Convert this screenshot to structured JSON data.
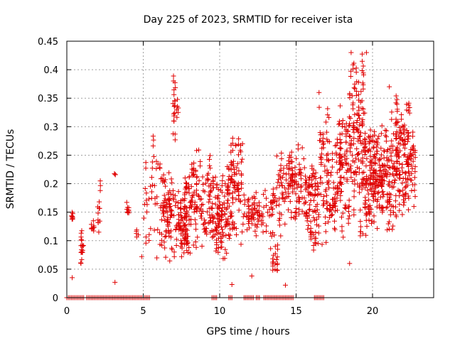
{
  "chart_data": {
    "type": "scatter",
    "title": "Day 225 of 2023, SRMTID for receiver ista",
    "xlabel": "GPS time / hours",
    "ylabel": "SRMTID / TECUs",
    "xlim": [
      0,
      24
    ],
    "ylim": [
      0,
      0.45
    ],
    "x_ticks": [
      {
        "value": 0,
        "label": "0"
      },
      {
        "value": 5,
        "label": "5"
      },
      {
        "value": 10,
        "label": "10"
      },
      {
        "value": 15,
        "label": "15"
      },
      {
        "value": 20,
        "label": "20"
      }
    ],
    "y_ticks": [
      {
        "value": 0,
        "label": "0"
      },
      {
        "value": 0.05,
        "label": "0.05"
      },
      {
        "value": 0.1,
        "label": "0.1"
      },
      {
        "value": 0.15,
        "label": "0.15"
      },
      {
        "value": 0.2,
        "label": "0.2"
      },
      {
        "value": 0.25,
        "label": "0.25"
      },
      {
        "value": 0.3,
        "label": "0.3"
      },
      {
        "value": 0.35,
        "label": "0.35"
      },
      {
        "value": 0.4,
        "label": "0.4"
      },
      {
        "value": 0.45,
        "label": "0.45"
      }
    ],
    "grid": true,
    "marker": "plus",
    "color": "#e00000",
    "zero_runs": [
      [
        0.0,
        0.5
      ],
      [
        0.6,
        1.1
      ],
      [
        1.3,
        2.9
      ],
      [
        3.0,
        5.4
      ],
      [
        9.5,
        9.8
      ],
      [
        10.6,
        10.8
      ],
      [
        11.6,
        12.2
      ],
      [
        12.4,
        12.6
      ],
      [
        12.9,
        14.8
      ],
      [
        16.2,
        16.8
      ]
    ],
    "clusters": [
      [
        0.3,
        0.4,
        0.13,
        0.15,
        8
      ],
      [
        0.9,
        1.1,
        0.05,
        0.13,
        14
      ],
      [
        1.6,
        1.8,
        0.11,
        0.13,
        6
      ],
      [
        2.0,
        2.2,
        0.09,
        0.22,
        10
      ],
      [
        3.1,
        3.2,
        0.21,
        0.225,
        3
      ],
      [
        3.9,
        4.1,
        0.145,
        0.16,
        6
      ],
      [
        4.5,
        4.7,
        0.1,
        0.12,
        4
      ],
      [
        5.0,
        6.0,
        0.06,
        0.3,
        30
      ],
      [
        6.0,
        7.0,
        0.06,
        0.24,
        70
      ],
      [
        6.9,
        7.3,
        0.27,
        0.4,
        20
      ],
      [
        7.0,
        8.0,
        0.06,
        0.22,
        80
      ],
      [
        8.0,
        9.5,
        0.06,
        0.27,
        90
      ],
      [
        9.5,
        10.5,
        0.05,
        0.23,
        80
      ],
      [
        10.5,
        11.5,
        0.08,
        0.3,
        80
      ],
      [
        11.5,
        12.5,
        0.1,
        0.2,
        40
      ],
      [
        12.5,
        13.5,
        0.1,
        0.22,
        25
      ],
      [
        13.3,
        13.8,
        0.03,
        0.12,
        15
      ],
      [
        13.5,
        14.5,
        0.1,
        0.27,
        40
      ],
      [
        14.5,
        15.5,
        0.12,
        0.27,
        60
      ],
      [
        15.5,
        16.5,
        0.08,
        0.24,
        70
      ],
      [
        16.5,
        17.5,
        0.07,
        0.36,
        60
      ],
      [
        17.5,
        18.5,
        0.1,
        0.35,
        90
      ],
      [
        18.5,
        19.5,
        0.1,
        0.44,
        110
      ],
      [
        19.5,
        20.5,
        0.1,
        0.3,
        110
      ],
      [
        20.5,
        21.5,
        0.1,
        0.33,
        90
      ],
      [
        21.5,
        22.5,
        0.12,
        0.37,
        100
      ],
      [
        22.5,
        22.8,
        0.15,
        0.32,
        20
      ]
    ],
    "outliers": [
      {
        "x": 0.35,
        "y": 0.035
      },
      {
        "x": 3.15,
        "y": 0.027
      },
      {
        "x": 4.9,
        "y": 0.072
      },
      {
        "x": 10.8,
        "y": 0.023
      },
      {
        "x": 12.1,
        "y": 0.038
      },
      {
        "x": 14.3,
        "y": 0.022
      },
      {
        "x": 18.5,
        "y": 0.06
      },
      {
        "x": 18.6,
        "y": 0.43
      },
      {
        "x": 19.6,
        "y": 0.43
      },
      {
        "x": 16.5,
        "y": 0.36
      },
      {
        "x": 21.1,
        "y": 0.37
      }
    ]
  }
}
